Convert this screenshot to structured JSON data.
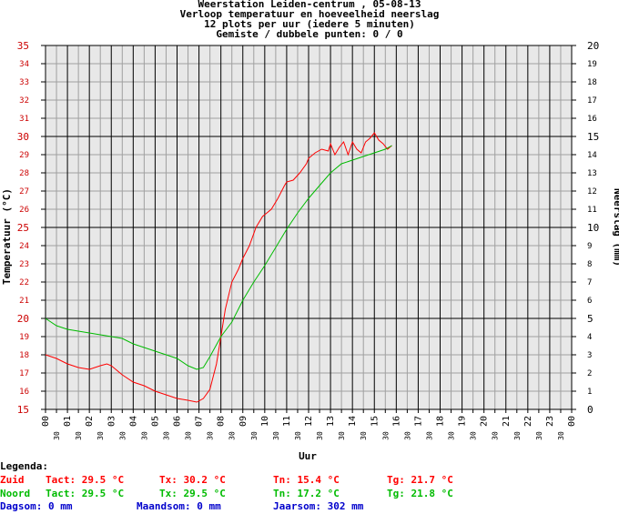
{
  "title": {
    "line1": "Weerstation Leiden-centrum , 05-08-13",
    "line2": "Verloop temperatuur en hoeveelheid neerslag",
    "line3": "12 plots per uur (iedere 5 minuten)",
    "line4": "Gemiste / dubbele punten: 0 / 0"
  },
  "colors": {
    "zuid": "#ff0000",
    "noord": "#00bb00",
    "blue": "#0000cc",
    "grid_major": "#000000",
    "grid_minor": "#a0a0a0",
    "plot_bg": "#e8e8e8"
  },
  "legend": {
    "heading": "Legenda:",
    "zuid": {
      "name": "Zuid",
      "tact": "Tact: 29.5 °C",
      "tx": "Tx: 30.2 °C",
      "tn": "Tn: 15.4 °C",
      "tg": "Tg: 21.7 °C"
    },
    "noord": {
      "name": "Noord",
      "tact": "Tact: 29.5 °C",
      "tx": "Tx: 29.5 °C",
      "tn": "Tn: 17.2 °C",
      "tg": "Tg: 21.8 °C"
    },
    "totals": {
      "dagsom": "Dagsom: 0 mm",
      "maandsom": "Maandsom: 0 mm",
      "jaarsom": "Jaarsom: 302 mm"
    }
  },
  "chart_data": {
    "type": "line",
    "xlabel": "Uur",
    "ylabel": "Temperatuur (°C)",
    "y2label": "Neerslag (mm)",
    "xlim": [
      0,
      24
    ],
    "ylim": [
      15,
      35
    ],
    "y2lim": [
      0,
      20
    ],
    "x_ticks": [
      "00",
      "30",
      "01",
      "30",
      "02",
      "30",
      "03",
      "30",
      "04",
      "30",
      "05",
      "30",
      "06",
      "30",
      "07",
      "30",
      "08",
      "30",
      "09",
      "30",
      "10",
      "30",
      "11",
      "30",
      "12",
      "30",
      "13",
      "30",
      "14",
      "30",
      "15",
      "30",
      "16",
      "30",
      "17",
      "30",
      "18",
      "30",
      "19",
      "30",
      "20",
      "30",
      "21",
      "30",
      "22",
      "30",
      "23",
      "30",
      "00"
    ],
    "y_ticks": [
      "15",
      "16",
      "17",
      "18",
      "19",
      "20",
      "21",
      "22",
      "23",
      "24",
      "25",
      "26",
      "27",
      "28",
      "29",
      "30",
      "31",
      "32",
      "33",
      "34",
      "35"
    ],
    "y2_ticks": [
      "0",
      "1",
      "2",
      "3",
      "4",
      "5",
      "6",
      "7",
      "8",
      "9",
      "10",
      "11",
      "12",
      "13",
      "14",
      "15",
      "16",
      "17",
      "18",
      "19",
      "20"
    ],
    "series": [
      {
        "name": "Zuid",
        "color": "#ff0000",
        "x": [
          0,
          0.5,
          1,
          1.5,
          2,
          2.5,
          2.8,
          3,
          3.5,
          4,
          4.5,
          5,
          5.5,
          6,
          6.5,
          6.9,
          7.2,
          7.5,
          7.8,
          8,
          8.2,
          8.5,
          8.8,
          9,
          9.3,
          9.6,
          9.9,
          10,
          10.3,
          10.6,
          10.9,
          11,
          11.3,
          11.6,
          11.9,
          12,
          12.3,
          12.6,
          12.9,
          13,
          13.2,
          13.4,
          13.6,
          13.8,
          14,
          14.2,
          14.4,
          14.6,
          14.8,
          15,
          15.2,
          15.4,
          15.6,
          15.8
        ],
        "values": [
          18.0,
          17.8,
          17.5,
          17.3,
          17.2,
          17.4,
          17.5,
          17.4,
          16.9,
          16.5,
          16.3,
          16.0,
          15.8,
          15.6,
          15.5,
          15.4,
          15.6,
          16.1,
          17.5,
          19.0,
          20.5,
          22.0,
          22.7,
          23.3,
          24.0,
          25.0,
          25.6,
          25.7,
          26.0,
          26.6,
          27.3,
          27.5,
          27.6,
          28.0,
          28.5,
          28.8,
          29.1,
          29.3,
          29.2,
          29.6,
          29.0,
          29.4,
          29.7,
          29.0,
          29.7,
          29.3,
          29.1,
          29.7,
          29.9,
          30.2,
          29.8,
          29.6,
          29.3,
          29.5
        ]
      },
      {
        "name": "Noord",
        "color": "#00bb00",
        "x": [
          0,
          0.5,
          1,
          1.5,
          2,
          2.5,
          3,
          3.5,
          4,
          4.5,
          5,
          5.5,
          6,
          6.5,
          6.9,
          7.2,
          7.5,
          8,
          8.5,
          9,
          9.5,
          10,
          10.5,
          11,
          11.5,
          12,
          12.5,
          13,
          13.5,
          14,
          14.5,
          15,
          15.5,
          15.8
        ],
        "values": [
          20.0,
          19.6,
          19.4,
          19.3,
          19.2,
          19.1,
          19.0,
          18.9,
          18.6,
          18.4,
          18.2,
          18.0,
          17.8,
          17.4,
          17.2,
          17.3,
          17.9,
          19.0,
          19.8,
          21.0,
          22.0,
          22.9,
          23.9,
          24.9,
          25.8,
          26.6,
          27.3,
          28.0,
          28.5,
          28.7,
          28.9,
          29.1,
          29.3,
          29.5
        ]
      }
    ],
    "grid": true
  }
}
